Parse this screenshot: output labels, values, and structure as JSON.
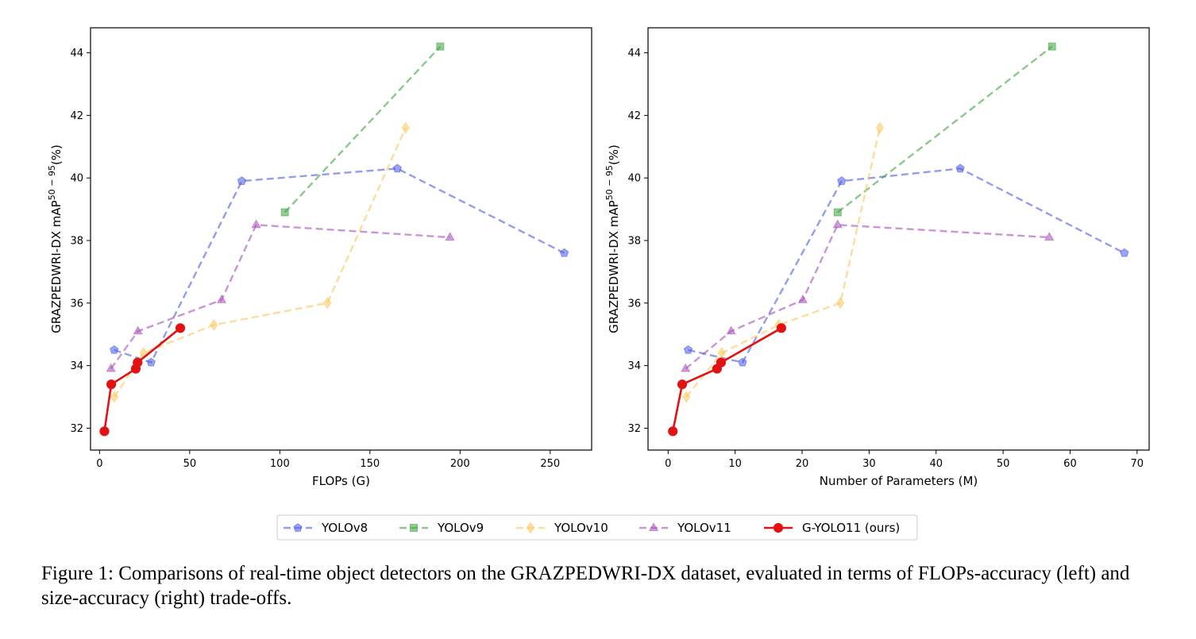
{
  "chart_data": [
    {
      "type": "line",
      "xlabel": "FLOPs (G)",
      "ylabel": "GRAZPEDWRI-DX mAP",
      "ylabel_sup": "50 − 95",
      "ylabel_suffix": "(%)",
      "xlim": [
        -5,
        273
      ],
      "ylim": [
        31.3,
        44.8
      ],
      "xticks": [
        0,
        50,
        100,
        150,
        200,
        250
      ],
      "yticks": [
        32,
        34,
        36,
        38,
        40,
        42,
        44
      ],
      "grid": false,
      "series": [
        {
          "name": "YOLOv8",
          "x": [
            8.1,
            28.6,
            78.9,
            165.2,
            257.8
          ],
          "y": [
            34.5,
            34.1,
            39.9,
            40.3,
            37.6
          ]
        },
        {
          "name": "YOLOv9",
          "x": [
            102.8,
            189.0
          ],
          "y": [
            38.9,
            44.2
          ]
        },
        {
          "name": "YOLOv10",
          "x": [
            8.2,
            24.4,
            63.4,
            126.4,
            169.8
          ],
          "y": [
            33.0,
            34.4,
            35.3,
            36.0,
            41.6
          ]
        },
        {
          "name": "YOLOv11",
          "x": [
            6.3,
            21.3,
            67.7,
            86.9,
            194.4
          ],
          "y": [
            33.9,
            35.1,
            36.1,
            38.5,
            38.1
          ]
        },
        {
          "name": "G-YOLO11 (ours)",
          "x": [
            2.7,
            6.5,
            20.1,
            21.1,
            44.8
          ],
          "y": [
            31.9,
            33.4,
            33.9,
            34.1,
            35.2
          ]
        }
      ]
    },
    {
      "type": "line",
      "xlabel": "Number of Parameters (M)",
      "ylabel": "GRAZPEDWRI-DX mAP",
      "ylabel_sup": "50 − 95",
      "ylabel_suffix": "(%)",
      "xlim": [
        -3,
        71.8
      ],
      "ylim": [
        31.3,
        44.8
      ],
      "xticks": [
        0,
        10,
        20,
        30,
        40,
        50,
        60,
        70
      ],
      "yticks": [
        32,
        34,
        36,
        38,
        40,
        42,
        44
      ],
      "grid": false,
      "series": [
        {
          "name": "YOLOv8",
          "x": [
            3.0,
            11.1,
            25.9,
            43.6,
            68.1
          ],
          "y": [
            34.5,
            34.1,
            39.9,
            40.3,
            37.6
          ]
        },
        {
          "name": "YOLOv9",
          "x": [
            25.3,
            57.3
          ],
          "y": [
            38.9,
            44.2
          ]
        },
        {
          "name": "YOLOv10",
          "x": [
            2.7,
            8.0,
            16.5,
            25.7,
            31.6
          ],
          "y": [
            33.0,
            34.4,
            35.3,
            36.0,
            41.6
          ]
        },
        {
          "name": "YOLOv11",
          "x": [
            2.6,
            9.4,
            20.1,
            25.3,
            56.9
          ],
          "y": [
            33.9,
            35.1,
            36.1,
            38.5,
            38.1
          ]
        },
        {
          "name": "G-YOLO11 (ours)",
          "x": [
            0.7,
            2.1,
            7.3,
            7.9,
            16.9
          ],
          "y": [
            31.9,
            33.4,
            33.9,
            34.1,
            35.2
          ]
        }
      ]
    }
  ],
  "legend": {
    "placement": "bottom-center",
    "entries": [
      {
        "label": "YOLOv8",
        "color": "#4b5ae8",
        "marker": "pentagon",
        "dashed": true
      },
      {
        "label": "YOLOv9",
        "color": "#3ea33e",
        "marker": "square",
        "dashed": true
      },
      {
        "label": "YOLOv10",
        "color": "#fbc65a",
        "marker": "diamond",
        "dashed": true
      },
      {
        "label": "YOLOv11",
        "color": "#a74fb9",
        "marker": "triangle",
        "dashed": true
      },
      {
        "label": "G-YOLO11 (ours)",
        "color": "#e31212",
        "marker": "circle",
        "dashed": false
      }
    ]
  },
  "caption": "Figure 1: Comparisons of real-time object detectors on the GRAZPEDWRI-DX dataset, evaluated in terms of FLOPs-accuracy (left) and size-accuracy (right) trade-offs."
}
